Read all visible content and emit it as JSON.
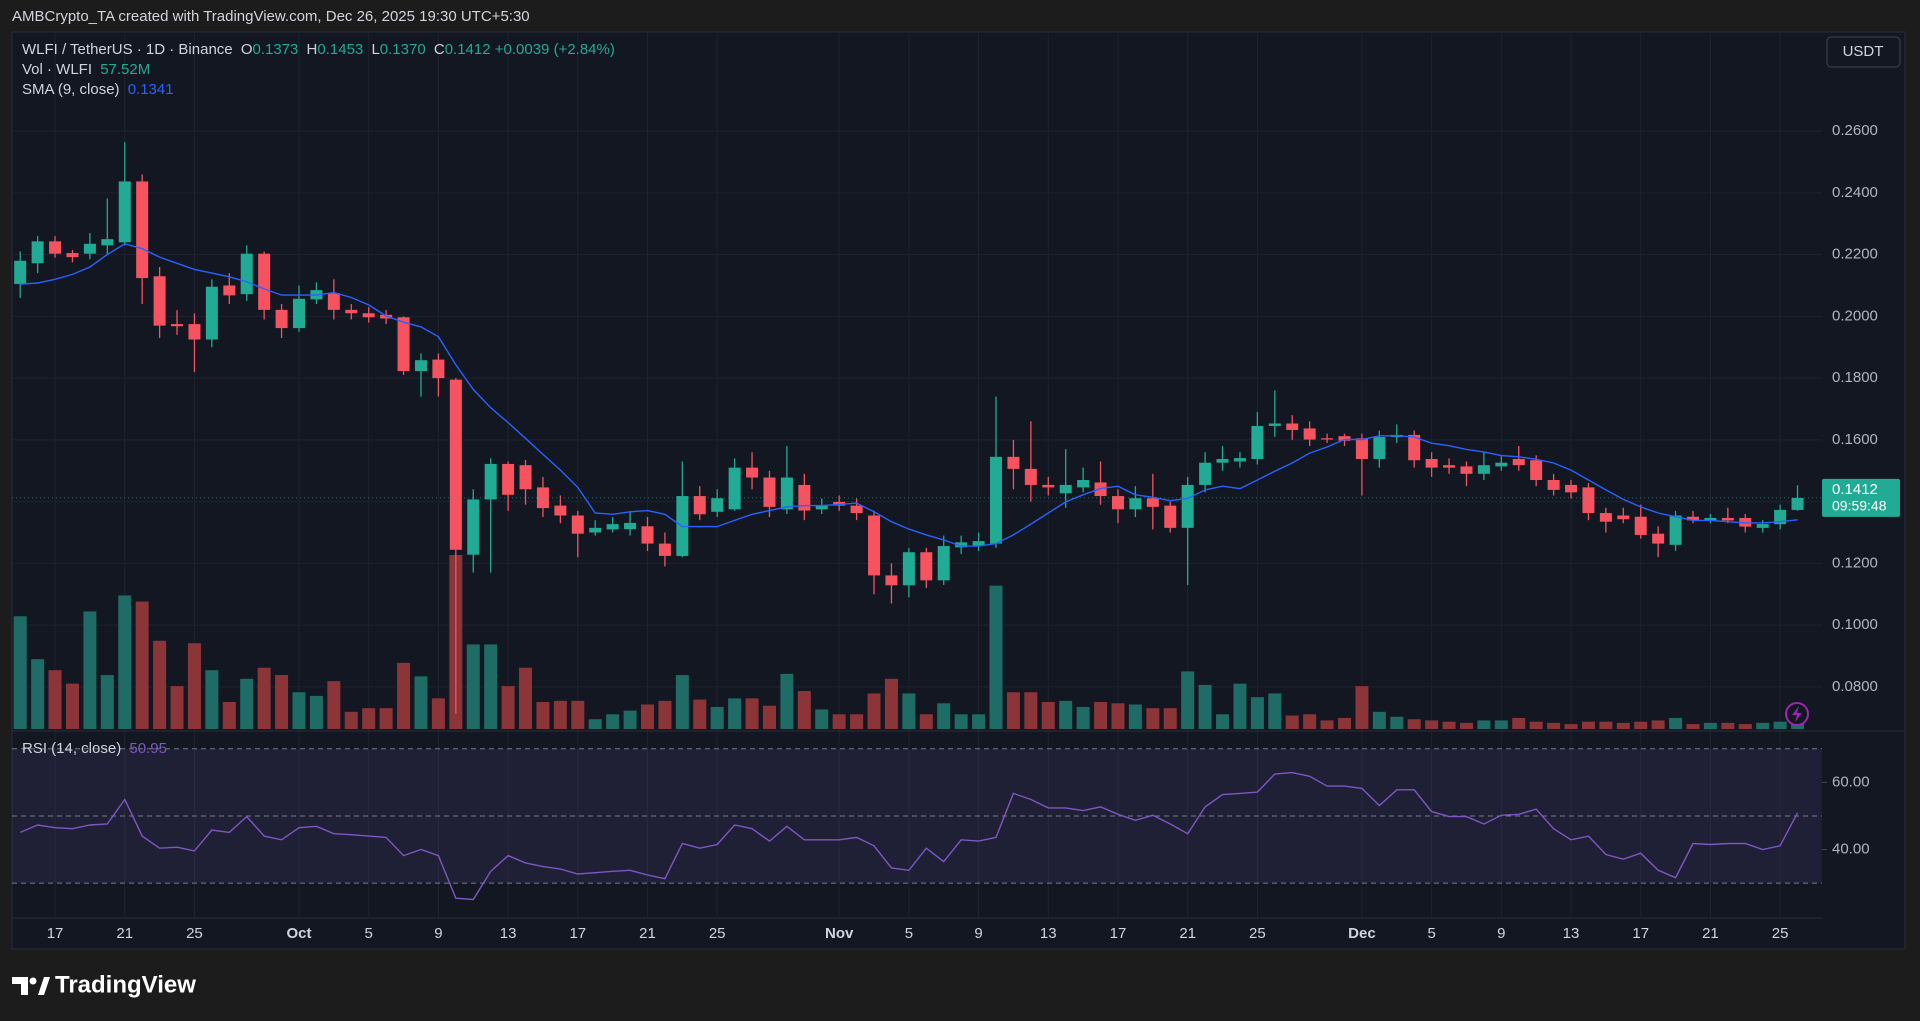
{
  "page": {
    "attribution": "AMBCrypto_TA created with TradingView.com, Dec 26, 2025 19:30 UTC+5:30",
    "brand": "TradingView",
    "currency": "USDT"
  },
  "chart_data": {
    "type": "candlestick",
    "legend": {
      "symbol": "WLFI / TetherUS · 1D · Binance",
      "labels": [
        "O",
        "H",
        "L",
        "C"
      ],
      "ohlc": [
        "0.1373",
        "0.1453",
        "0.1370",
        "0.1412"
      ],
      "change": "+0.0039 (+2.84%)"
    },
    "categories": [
      null,
      null,
      "17",
      null,
      null,
      null,
      "21",
      null,
      null,
      null,
      "25",
      null,
      null,
      null,
      null,
      null,
      "Oct",
      null,
      null,
      null,
      "5",
      null,
      null,
      null,
      "9",
      null,
      null,
      null,
      "13",
      null,
      null,
      null,
      "17",
      null,
      null,
      null,
      "21",
      null,
      null,
      null,
      "25",
      null,
      null,
      null,
      null,
      null,
      null,
      "Nov",
      null,
      null,
      null,
      "5",
      null,
      null,
      null,
      "9",
      null,
      null,
      null,
      "13",
      null,
      null,
      null,
      "17",
      null,
      null,
      null,
      "21",
      null,
      null,
      null,
      "25",
      null,
      null,
      null,
      null,
      null,
      "Dec",
      null,
      null,
      null,
      "5",
      null,
      null,
      null,
      "9",
      null,
      null,
      null,
      "13",
      null,
      null,
      null,
      "17",
      null,
      null,
      null,
      "21",
      null,
      null,
      null,
      "25",
      null
    ],
    "open": [
      0.2105,
      0.2172,
      0.2243,
      0.2205,
      0.2203,
      0.223,
      0.224,
      0.2437,
      0.213,
      0.1975,
      0.1975,
      0.1925,
      0.21,
      0.2072,
      0.2203,
      0.2021,
      0.1962,
      0.2055,
      0.2075,
      0.2021,
      0.201,
      0.2005,
      0.1997,
      0.1823,
      0.186,
      0.1795,
      0.1228,
      0.1407,
      0.1522,
      0.1518,
      0.1446,
      0.1387,
      0.1355,
      0.13,
      0.131,
      0.1311,
      0.132,
      0.1264,
      0.1224,
      0.1418,
      0.1367,
      0.1375,
      0.151,
      0.1478,
      0.1375,
      0.1454,
      0.1375,
      0.1399,
      0.1387,
      0.1355,
      0.1161,
      0.1129,
      0.1236,
      0.1145,
      0.1252,
      0.1256,
      0.1264,
      0.1545,
      0.1506,
      0.1454,
      0.1427,
      0.1446,
      0.1462,
      0.1418,
      0.1375,
      0.1411,
      0.1387,
      0.1315,
      0.1454,
      0.1526,
      0.153,
      0.1538,
      0.1645,
      0.1653,
      0.1637,
      0.1605,
      0.1612,
      0.1605,
      0.1538,
      0.1609,
      0.1616,
      0.1538,
      0.1518,
      0.1514,
      0.149,
      0.1514,
      0.1538,
      0.1534,
      0.147,
      0.1454,
      0.1446,
      0.1363,
      0.1355,
      0.1351,
      0.1296,
      0.126,
      0.1351,
      0.1339,
      0.1347,
      0.1347,
      0.1315,
      0.1327,
      0.1373
    ],
    "high": [
      0.221,
      0.226,
      0.226,
      0.2215,
      0.227,
      0.2382,
      0.2564,
      0.246,
      0.216,
      0.202,
      0.201,
      0.212,
      0.214,
      0.223,
      0.221,
      0.204,
      0.21,
      0.211,
      0.212,
      0.204,
      0.203,
      0.202,
      0.2,
      0.188,
      0.188,
      0.18,
      0.144,
      0.154,
      0.153,
      0.1535,
      0.148,
      0.142,
      0.137,
      0.134,
      0.135,
      0.137,
      0.135,
      0.13,
      0.153,
      0.145,
      0.144,
      0.154,
      0.156,
      0.15,
      0.158,
      0.149,
      0.141,
      0.142,
      0.141,
      0.137,
      0.12,
      0.125,
      0.125,
      0.129,
      0.129,
      0.13,
      0.174,
      0.16,
      0.166,
      0.148,
      0.157,
      0.151,
      0.153,
      0.144,
      0.145,
      0.149,
      0.14,
      0.148,
      0.156,
      0.158,
      0.156,
      0.169,
      0.176,
      0.168,
      0.166,
      0.162,
      0.162,
      0.162,
      0.163,
      0.165,
      0.163,
      0.156,
      0.154,
      0.153,
      0.156,
      0.155,
      0.158,
      0.155,
      0.149,
      0.147,
      0.146,
      0.138,
      0.138,
      0.139,
      0.132,
      0.137,
      0.137,
      0.136,
      0.138,
      0.136,
      0.134,
      0.139,
      0.1453
    ],
    "low": [
      0.206,
      0.214,
      0.219,
      0.2175,
      0.2185,
      0.22,
      0.223,
      0.204,
      0.193,
      0.194,
      0.182,
      0.19,
      0.204,
      0.205,
      0.199,
      0.193,
      0.195,
      0.204,
      0.199,
      0.199,
      0.198,
      0.1975,
      0.181,
      0.174,
      0.174,
      0.0713,
      0.117,
      0.117,
      0.137,
      0.139,
      0.135,
      0.133,
      0.122,
      0.129,
      0.13,
      0.129,
      0.124,
      0.119,
      0.122,
      0.134,
      0.135,
      0.137,
      0.144,
      0.135,
      0.136,
      0.134,
      0.136,
      0.137,
      0.134,
      0.11,
      0.107,
      0.109,
      0.112,
      0.113,
      0.123,
      0.124,
      0.125,
      0.144,
      0.14,
      0.142,
      0.138,
      0.143,
      0.139,
      0.133,
      0.135,
      0.131,
      0.13,
      0.113,
      0.143,
      0.15,
      0.151,
      0.152,
      0.161,
      0.16,
      0.158,
      0.159,
      0.158,
      0.142,
      0.151,
      0.159,
      0.151,
      0.148,
      0.149,
      0.145,
      0.147,
      0.15,
      0.15,
      0.145,
      0.142,
      0.141,
      0.134,
      0.13,
      0.133,
      0.128,
      0.122,
      0.124,
      0.133,
      0.133,
      0.133,
      0.13,
      0.13,
      0.131,
      0.137
    ],
    "close": [
      0.218,
      0.2243,
      0.2203,
      0.2192,
      0.2235,
      0.225,
      0.2437,
      0.2124,
      0.197,
      0.1968,
      0.1925,
      0.2096,
      0.2068,
      0.2203,
      0.2021,
      0.1962,
      0.2057,
      0.2085,
      0.2021,
      0.201,
      0.1997,
      0.1993,
      0.1823,
      0.1858,
      0.18,
      0.1244,
      0.1407,
      0.1522,
      0.1422,
      0.144,
      0.1379,
      0.1355,
      0.1296,
      0.1315,
      0.1327,
      0.1331,
      0.1264,
      0.1224,
      0.1418,
      0.1359,
      0.1411,
      0.151,
      0.1478,
      0.1383,
      0.1478,
      0.1371,
      0.1387,
      0.1387,
      0.1363,
      0.1161,
      0.1129,
      0.1236,
      0.1145,
      0.1256,
      0.1268,
      0.1272,
      0.1545,
      0.1506,
      0.1454,
      0.1446,
      0.1454,
      0.147,
      0.1418,
      0.1375,
      0.1411,
      0.1383,
      0.1315,
      0.1454,
      0.1526,
      0.1538,
      0.1541,
      0.1645,
      0.1653,
      0.1632,
      0.1601,
      0.1601,
      0.1597,
      0.1538,
      0.1609,
      0.1616,
      0.1534,
      0.151,
      0.151,
      0.149,
      0.1518,
      0.1526,
      0.1518,
      0.147,
      0.1438,
      0.143,
      0.1363,
      0.1335,
      0.1343,
      0.1292,
      0.1264,
      0.1355,
      0.1339,
      0.1347,
      0.1339,
      0.1319,
      0.1327,
      0.1373,
      0.1412
    ],
    "up_color": "#22ab94",
    "down_color": "#f7525f",
    "ylim": [
      0.0657,
      0.2921
    ],
    "yticks": [
      {
        "value": 0.08,
        "label": "0.0800"
      },
      {
        "value": 0.1,
        "label": "0.1000"
      },
      {
        "value": 0.12,
        "label": "0.1200"
      },
      {
        "value": 0.14,
        "label": "0.1400"
      },
      {
        "value": 0.16,
        "label": "0.1600"
      },
      {
        "value": 0.18,
        "label": "0.1800"
      },
      {
        "value": 0.2,
        "label": "0.2000"
      },
      {
        "value": 0.22,
        "label": "0.2200"
      },
      {
        "value": 0.24,
        "label": "0.2400"
      },
      {
        "value": 0.26,
        "label": "0.2600"
      }
    ],
    "grid": true,
    "last_price": {
      "label": "0.1412",
      "countdown": "09:59:48"
    },
    "volume": {
      "name": "Vol · WLFI",
      "value_label": "57.52M",
      "up_color": "#1f6b66",
      "down_color": "#8c3539",
      "values": [
        1325,
        821,
        691,
        533,
        1382,
        634,
        1570,
        1498,
        1037,
        504,
        1008,
        691,
        317,
        590,
        720,
        634,
        432,
        389,
        562,
        202,
        245,
        245,
        778,
        619,
        360,
        2045,
        994,
        994,
        504,
        720,
        317,
        331,
        331,
        115,
        173,
        216,
        288,
        331,
        634,
        346,
        259,
        360,
        360,
        274,
        648,
        446,
        230,
        173,
        173,
        418,
        590,
        418,
        173,
        302,
        173,
        173,
        1685,
        432,
        432,
        317,
        331,
        259,
        317,
        302,
        288,
        245,
        245,
        677,
        518,
        173,
        533,
        374,
        418,
        158,
        173,
        101,
        130,
        504,
        202,
        144,
        115,
        101,
        86,
        72,
        101,
        101,
        130,
        86,
        72,
        58,
        86,
        86,
        72,
        86,
        101,
        130,
        58,
        72,
        72,
        58,
        72,
        86,
        57.52
      ]
    },
    "sma": {
      "name": "SMA (9, close)",
      "value_label": "0.1341",
      "color": "#2962ff",
      "values": [
        0.2104,
        0.2108,
        0.212,
        0.2136,
        0.216,
        0.22,
        0.2235,
        0.2219,
        0.2192,
        0.2172,
        0.2152,
        0.214,
        0.2128,
        0.2112,
        0.2089,
        0.2069,
        0.2069,
        0.2069,
        0.2077,
        0.2061,
        0.2037,
        0.2001,
        0.1981,
        0.1966,
        0.1934,
        0.1843,
        0.1763,
        0.1704,
        0.1656,
        0.1605,
        0.1553,
        0.1502,
        0.1446,
        0.1363,
        0.1359,
        0.1367,
        0.1371,
        0.1359,
        0.1319,
        0.1319,
        0.1319,
        0.1339,
        0.1359,
        0.1371,
        0.1383,
        0.1387,
        0.1387,
        0.1391,
        0.1395,
        0.1367,
        0.1335,
        0.1311,
        0.1292,
        0.1276,
        0.1256,
        0.1256,
        0.1264,
        0.1292,
        0.1327,
        0.1363,
        0.1399,
        0.1422,
        0.1442,
        0.145,
        0.1422,
        0.1414,
        0.1403,
        0.141,
        0.1438,
        0.145,
        0.1442,
        0.147,
        0.1498,
        0.1525,
        0.1557,
        0.1577,
        0.1601,
        0.1601,
        0.1613,
        0.1613,
        0.1609,
        0.1589,
        0.1581,
        0.1569,
        0.1561,
        0.1549,
        0.1545,
        0.1537,
        0.1525,
        0.1502,
        0.147,
        0.1438,
        0.1407,
        0.1383,
        0.1363,
        0.1351,
        0.1339,
        0.1339,
        0.1335,
        0.1331,
        0.1331,
        0.1335,
        0.1341
      ]
    },
    "rsi": {
      "name": "RSI (14, close)",
      "value_label": "50.95",
      "color": "#7e57c2",
      "ylim": [
        19.6,
        75.3
      ],
      "yticks": [
        {
          "value": 40,
          "label": "40.00"
        },
        {
          "value": 60,
          "label": "60.00"
        }
      ],
      "levels": [
        70,
        50,
        30
      ],
      "values": [
        45.1,
        47.3,
        46.5,
        46.2,
        47.3,
        47.6,
        54.9,
        44.0,
        40.4,
        40.7,
        39.6,
        45.8,
        45.1,
        49.8,
        44.0,
        42.9,
        46.5,
        46.9,
        44.7,
        44.4,
        44.0,
        43.6,
        38.2,
        40.0,
        38.2,
        25.5,
        25.1,
        33.5,
        38.2,
        36.0,
        34.9,
        34.2,
        32.7,
        33.1,
        33.5,
        33.8,
        32.4,
        31.3,
        41.8,
        40.4,
        41.5,
        47.3,
        46.2,
        42.5,
        46.9,
        42.9,
        42.9,
        42.9,
        43.6,
        41.1,
        34.5,
        33.8,
        40.4,
        36.4,
        42.9,
        42.5,
        43.6,
        56.7,
        54.9,
        52.4,
        52.4,
        51.6,
        52.7,
        50.5,
        48.7,
        50.2,
        47.6,
        44.7,
        52.7,
        56.4,
        56.7,
        57.1,
        62.5,
        62.9,
        61.8,
        58.9,
        58.9,
        58.2,
        53.1,
        57.8,
        57.8,
        51.3,
        49.8,
        49.8,
        47.6,
        50.2,
        50.5,
        52.0,
        46.2,
        42.9,
        44.0,
        38.5,
        37.1,
        38.9,
        33.8,
        31.6,
        41.8,
        41.5,
        41.8,
        41.8,
        40.0,
        41.1,
        50.95
      ]
    }
  }
}
